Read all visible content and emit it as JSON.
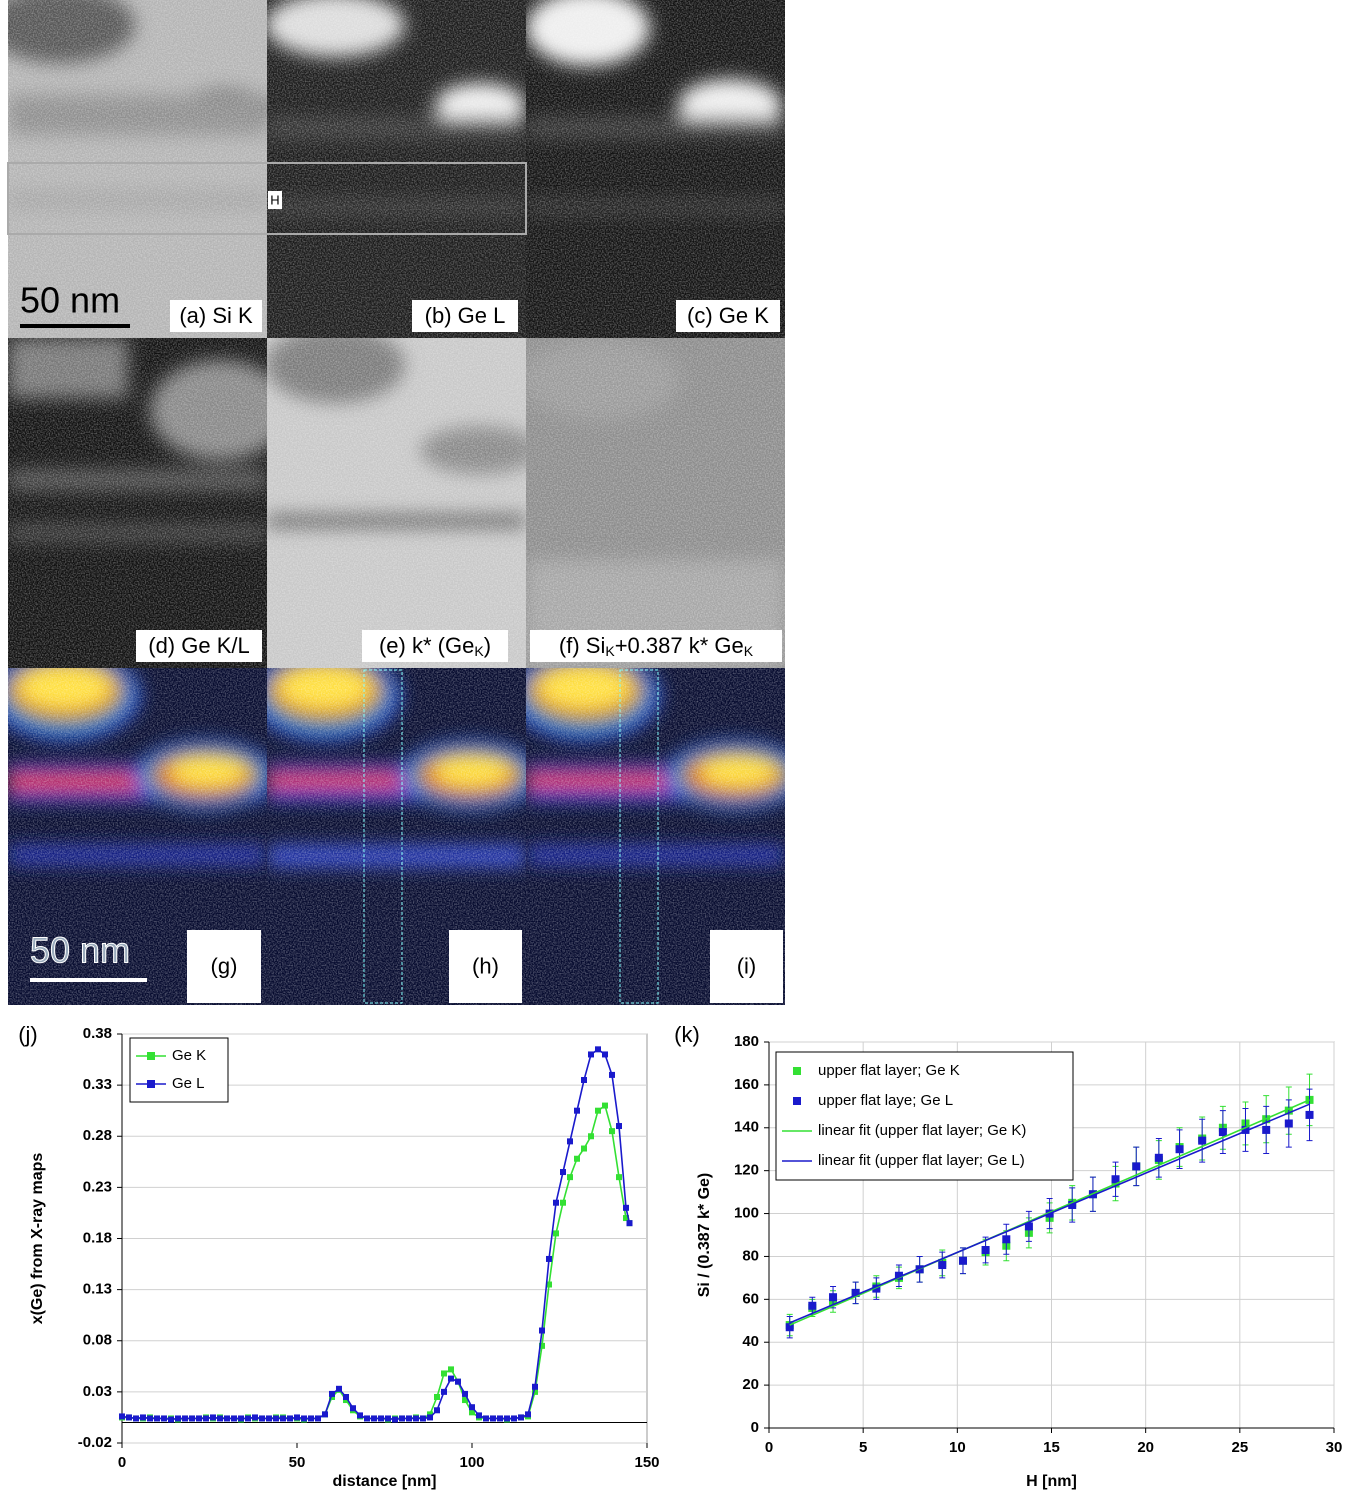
{
  "panels": [
    {
      "label_parts": [
        "(a) Si K"
      ]
    },
    {
      "label_parts": [
        "(b) Ge  L"
      ]
    },
    {
      "label_parts": [
        "(c) Ge K"
      ]
    },
    {
      "label_parts": [
        "(d) Ge K/L"
      ]
    },
    {
      "label_parts": [
        "(e)  k* (Ge",
        "K",
        ")"
      ]
    },
    {
      "label_parts": [
        "(f)  Si",
        "K",
        "+0.387 k* Ge",
        "K"
      ]
    },
    {
      "label_parts": [
        "(g)"
      ]
    },
    {
      "label_parts": [
        "(h)"
      ]
    },
    {
      "label_parts": [
        "(i)"
      ]
    }
  ],
  "scale_bars": [
    "50 nm",
    "50 nm"
  ],
  "region_marker": "H",
  "chart_data": [
    {
      "type": "line",
      "label": "(j)",
      "xlabel": "distance [nm]",
      "ylabel": "x(Ge) from X-ray maps",
      "x": [
        0,
        2,
        4,
        6,
        8,
        10,
        12,
        14,
        16,
        18,
        20,
        22,
        24,
        26,
        28,
        30,
        32,
        34,
        36,
        38,
        40,
        42,
        44,
        46,
        48,
        50,
        52,
        54,
        56,
        58,
        60,
        62,
        64,
        66,
        68,
        70,
        72,
        74,
        76,
        78,
        80,
        82,
        84,
        86,
        88,
        90,
        92,
        94,
        96,
        98,
        100,
        102,
        104,
        106,
        108,
        110,
        112,
        114,
        116,
        118,
        120,
        122,
        124,
        126,
        128,
        130,
        132,
        134,
        136,
        138,
        140,
        142,
        144,
        145
      ],
      "series": [
        {
          "name": "Ge K",
          "color": "#33e033",
          "values": [
            0.005,
            0.005,
            0.004,
            0.004,
            0.005,
            0.004,
            0.004,
            0.004,
            0.003,
            0.004,
            0.004,
            0.004,
            0.005,
            0.004,
            0.005,
            0.004,
            0.004,
            0.003,
            0.005,
            0.004,
            0.004,
            0.004,
            0.005,
            0.005,
            0.004,
            0.004,
            0.003,
            0.004,
            0.004,
            0.008,
            0.025,
            0.032,
            0.022,
            0.012,
            0.006,
            0.004,
            0.004,
            0.004,
            0.003,
            0.004,
            0.004,
            0.004,
            0.005,
            0.004,
            0.008,
            0.025,
            0.048,
            0.052,
            0.04,
            0.022,
            0.01,
            0.005,
            0.004,
            0.004,
            0.004,
            0.003,
            0.004,
            0.005,
            0.006,
            0.03,
            0.075,
            0.135,
            0.185,
            0.215,
            0.24,
            0.258,
            0.268,
            0.28,
            0.305,
            0.31,
            0.285,
            0.24,
            0.2,
            0.195
          ]
        },
        {
          "name": "Ge L",
          "color": "#1a1acc",
          "values": [
            0.006,
            0.005,
            0.004,
            0.005,
            0.004,
            0.004,
            0.004,
            0.003,
            0.004,
            0.004,
            0.004,
            0.004,
            0.004,
            0.005,
            0.004,
            0.004,
            0.004,
            0.004,
            0.004,
            0.005,
            0.004,
            0.004,
            0.004,
            0.004,
            0.004,
            0.005,
            0.004,
            0.004,
            0.004,
            0.008,
            0.028,
            0.033,
            0.025,
            0.014,
            0.007,
            0.004,
            0.004,
            0.004,
            0.004,
            0.003,
            0.004,
            0.004,
            0.004,
            0.004,
            0.005,
            0.012,
            0.03,
            0.043,
            0.04,
            0.028,
            0.015,
            0.007,
            0.004,
            0.004,
            0.004,
            0.004,
            0.004,
            0.005,
            0.008,
            0.035,
            0.09,
            0.16,
            0.215,
            0.245,
            0.275,
            0.305,
            0.335,
            0.36,
            0.365,
            0.36,
            0.34,
            0.29,
            0.21,
            0.195
          ]
        }
      ],
      "xlim": [
        0,
        150
      ],
      "xticks": [
        0,
        50,
        100,
        150
      ],
      "ylim": [
        -0.02,
        0.38
      ],
      "yticks": [
        -0.02,
        0.03,
        0.08,
        0.13,
        0.18,
        0.23,
        0.28,
        0.33,
        0.38
      ],
      "grid": "y",
      "legend": "upper left"
    },
    {
      "type": "scatter",
      "label": "(k)",
      "xlabel": "H [nm]",
      "ylabel": "Si / (0.387 k* Ge)",
      "series": [
        {
          "name": "upper flat layer; Ge K",
          "color": "#33e033",
          "style": "markers",
          "x": [
            1.1,
            2.3,
            3.4,
            4.6,
            5.7,
            6.9,
            8.0,
            9.2,
            10.3,
            11.5,
            12.6,
            13.8,
            14.9,
            16.1,
            17.2,
            18.4,
            19.5,
            20.7,
            21.8,
            23.0,
            24.1,
            25.3,
            26.4,
            27.6,
            28.7
          ],
          "values": [
            48,
            56,
            59,
            63,
            66,
            70,
            74,
            77,
            78,
            82,
            85,
            91,
            98,
            105,
            109,
            114,
            122,
            125,
            131,
            135,
            140,
            142,
            144,
            148,
            153
          ],
          "errors": [
            5,
            4,
            5,
            5,
            5,
            5,
            6,
            6,
            6,
            6,
            7,
            7,
            7,
            8,
            8,
            8,
            9,
            9,
            9,
            10,
            10,
            10,
            11,
            11,
            12
          ]
        },
        {
          "name": "upper flat laye; Ge L",
          "color": "#1a1acc",
          "style": "markers",
          "x": [
            1.1,
            2.3,
            3.4,
            4.6,
            5.7,
            6.9,
            8.0,
            9.2,
            10.3,
            11.5,
            12.6,
            13.8,
            14.9,
            16.1,
            17.2,
            18.4,
            19.5,
            20.7,
            21.8,
            23.0,
            24.1,
            25.3,
            26.4,
            27.6,
            28.7
          ],
          "values": [
            47,
            57,
            61,
            63,
            65,
            71,
            74,
            76,
            78,
            83,
            88,
            94,
            100,
            104,
            109,
            116,
            122,
            126,
            130,
            134,
            138,
            139,
            139,
            142,
            146
          ],
          "errors": [
            5,
            4,
            5,
            5,
            5,
            5,
            6,
            6,
            6,
            6,
            7,
            7,
            7,
            8,
            8,
            8,
            9,
            9,
            9,
            10,
            10,
            10,
            11,
            11,
            12
          ]
        },
        {
          "name": "linear fit (upper flat layer; Ge K)",
          "color": "#33e033",
          "style": "line",
          "x": [
            1.1,
            28.7
          ],
          "values": [
            48,
            153
          ]
        },
        {
          "name": "linear fit (upper flat layer; Ge L)",
          "color": "#1a1acc",
          "style": "line",
          "x": [
            1.1,
            28.7
          ],
          "values": [
            49,
            151
          ]
        }
      ],
      "xlim": [
        0,
        30
      ],
      "xticks": [
        0,
        5,
        10,
        15,
        20,
        25,
        30
      ],
      "ylim": [
        0,
        180
      ],
      "yticks": [
        0,
        20,
        40,
        60,
        80,
        100,
        120,
        140,
        160,
        180
      ],
      "grid": "both",
      "legend": "upper left"
    }
  ]
}
